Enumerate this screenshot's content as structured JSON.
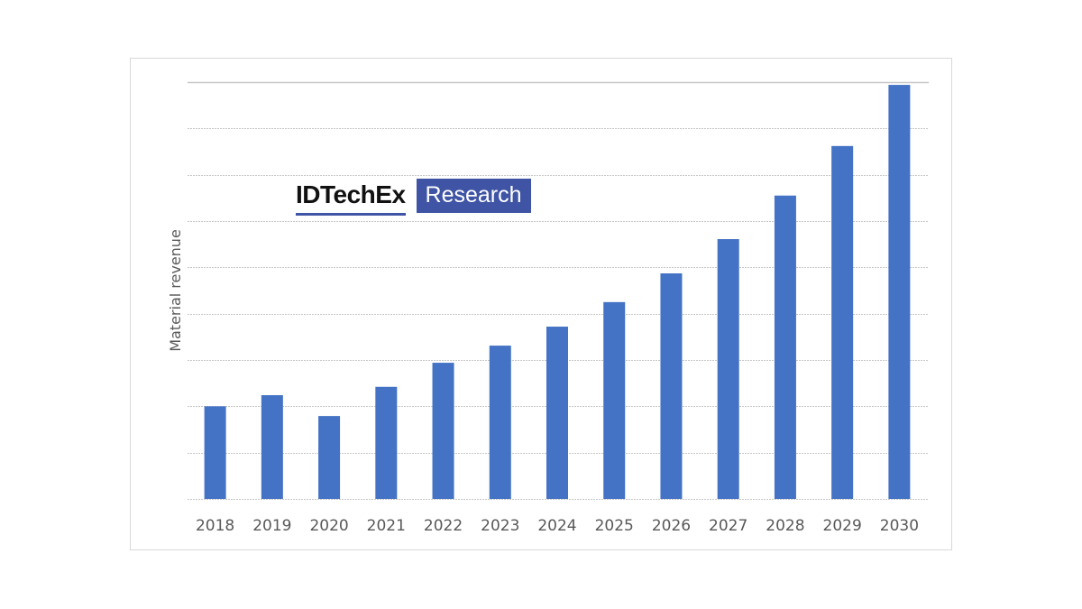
{
  "logo": {
    "brand": "IDTechEx",
    "badge": "Research",
    "brand_color": "#3f54a4"
  },
  "chart_data": {
    "type": "bar",
    "title": "",
    "xlabel": "",
    "ylabel": "Material revenue",
    "categories": [
      "2018",
      "2019",
      "2020",
      "2021",
      "2022",
      "2023",
      "2024",
      "2025",
      "2026",
      "2027",
      "2028",
      "2029",
      "2030"
    ],
    "values": [
      2.0,
      2.24,
      1.79,
      2.42,
      2.94,
      3.31,
      3.72,
      4.25,
      4.87,
      5.61,
      6.55,
      7.62,
      8.94
    ],
    "ylim": [
      0,
      9
    ],
    "y_gridline_step": 1,
    "y_tick_labels_shown": false,
    "grid": true,
    "legend": "none",
    "bar_color": "#4472c4",
    "gridline_color": "#c8c8c8"
  }
}
